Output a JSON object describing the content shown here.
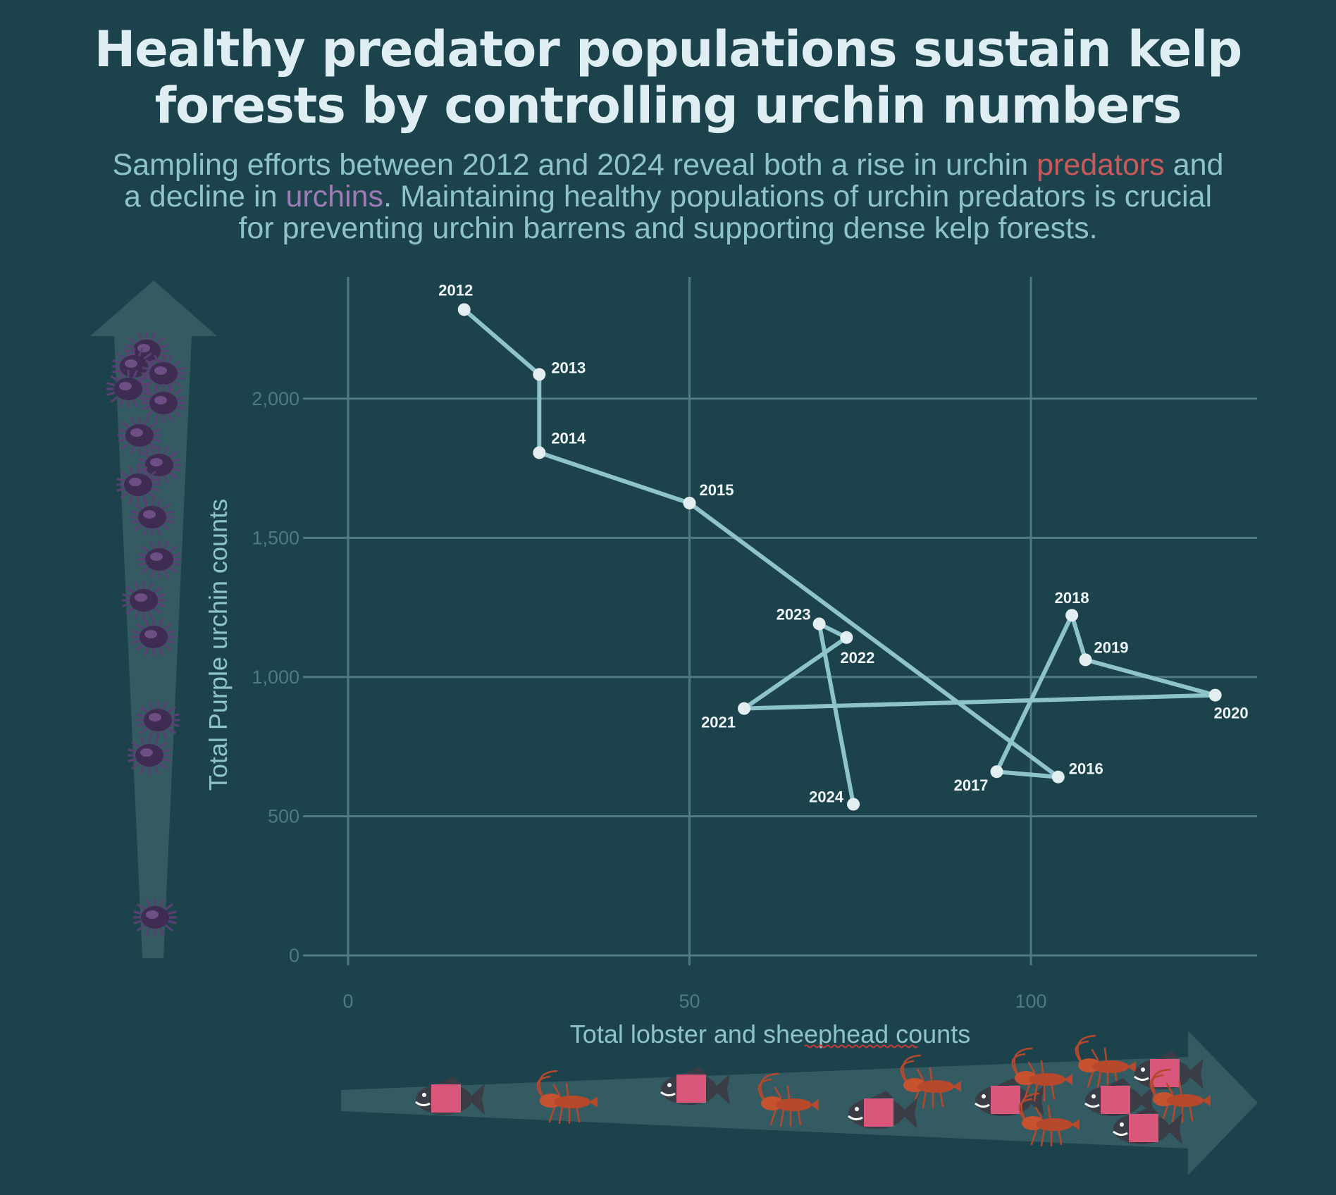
{
  "title_line1": "Healthy predator populations sustain kelp",
  "title_line2": "forests by controlling urchin numbers",
  "subtitle": {
    "l1_a": "Sampling efforts between 2012 and 2024 reveal both a rise in urchin ",
    "l1_hl": "predators",
    "l1_b": " and",
    "l2_a": "a decline in ",
    "l2_hl": "urchins",
    "l2_b": ". Maintaining healthy populations of urchin predators is crucial",
    "l3": "for preventing urchin barrens and supporting dense kelp forests."
  },
  "colors": {
    "background": "#1c434c",
    "line": "#8fc3cc",
    "point": "#e3eef1",
    "grid": "#4f7a83",
    "arrow": "#355b62",
    "predators_highlight": "#c95a5c",
    "urchins_highlight": "#9f7ab5"
  },
  "icons": [
    "urchin-icon",
    "sheephead-fish-icon",
    "lobster-icon"
  ],
  "chart_data": {
    "type": "line",
    "variant": "connected scatter",
    "xlabel": "Total lobster and sheephead counts",
    "ylabel": "Total Purple urchin counts",
    "xlim": [
      0,
      133
    ],
    "ylim": [
      0,
      2450
    ],
    "xticks": [
      0,
      50,
      100
    ],
    "xtick_labels": [
      "0",
      "50",
      "100"
    ],
    "yticks": [
      0,
      500,
      1000,
      1500,
      2000
    ],
    "ytick_labels": [
      "0",
      "500",
      "1,000",
      "1,500",
      "2,000"
    ],
    "grid": true,
    "legend": "none",
    "points": [
      {
        "label": "2012",
        "x": 17,
        "y": 2320
      },
      {
        "label": "2013",
        "x": 28,
        "y": 2087
      },
      {
        "label": "2014",
        "x": 28,
        "y": 1806
      },
      {
        "label": "2015",
        "x": 50,
        "y": 1625
      },
      {
        "label": "2016",
        "x": 104,
        "y": 641
      },
      {
        "label": "2017",
        "x": 95,
        "y": 660
      },
      {
        "label": "2018",
        "x": 106,
        "y": 1222
      },
      {
        "label": "2019",
        "x": 108,
        "y": 1062
      },
      {
        "label": "2020",
        "x": 127,
        "y": 935
      },
      {
        "label": "2021",
        "x": 58,
        "y": 887
      },
      {
        "label": "2022",
        "x": 73,
        "y": 1142
      },
      {
        "label": "2023",
        "x": 69,
        "y": 1191
      },
      {
        "label": "2024",
        "x": 74,
        "y": 543
      }
    ]
  }
}
